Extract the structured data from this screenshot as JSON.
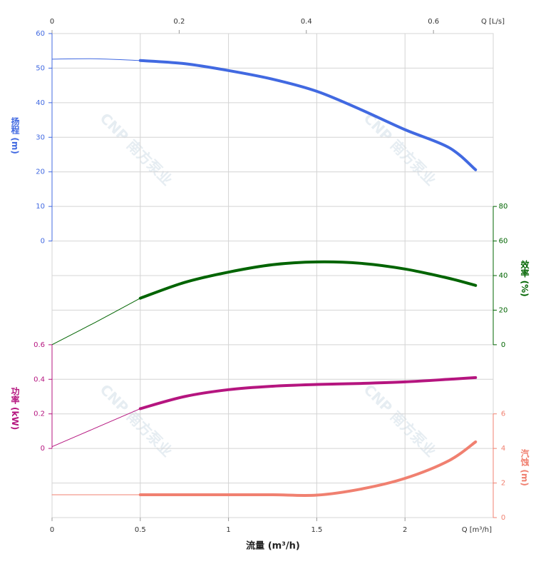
{
  "chart_data": {
    "type": "line",
    "xlabel": "流量 (m³/h)",
    "x_unit_label": "Q [m³/h]",
    "x2_unit_label": "Q [L/s]",
    "watermark": "CNP 南方泵业",
    "xlim": [
      0,
      2.5
    ],
    "xticks": [
      0,
      0.5,
      1,
      1.5,
      2
    ],
    "x2lim": [
      0,
      0.694
    ],
    "x2ticks": [
      0,
      0.2,
      0.4,
      0.6
    ],
    "grid": true,
    "operating_range": [
      0.5,
      2.4
    ],
    "x": [
      0,
      0.25,
      0.5,
      0.75,
      1,
      1.25,
      1.5,
      1.75,
      2,
      2.25,
      2.4
    ],
    "series": [
      {
        "name": "扬程 (m)",
        "color": "#4169e1",
        "side": "left",
        "ylim": [
          -80,
          60
        ],
        "yticks": [
          0,
          10,
          20,
          30,
          40,
          50,
          60
        ],
        "values": [
          52.6,
          52.7,
          52.2,
          51.3,
          49.3,
          46.8,
          43.3,
          38,
          32.2,
          27,
          20.6
        ]
      },
      {
        "name": "效率 (%)",
        "color": "#006400",
        "side": "right",
        "ylim": [
          -100,
          180
        ],
        "yticks": [
          0,
          20,
          40,
          60,
          80
        ],
        "values": [
          0,
          13.2,
          26.9,
          36,
          42,
          46.3,
          47.9,
          47.1,
          43.8,
          38.4,
          34.3
        ]
      },
      {
        "name": "功率 (kW)",
        "color": "#b5157f",
        "side": "left",
        "ylim": [
          -0.4,
          2.4
        ],
        "yticks": [
          0,
          0.2,
          0.4,
          0.6
        ],
        "values": [
          0.01,
          0.12,
          0.23,
          0.3,
          0.34,
          0.36,
          0.37,
          0.376,
          0.385,
          0.4,
          0.41
        ]
      },
      {
        "name": "汽蚀 (m)",
        "color": "#f08070",
        "side": "right",
        "ylim": [
          0,
          28
        ],
        "yticks": [
          0,
          2,
          4,
          6
        ],
        "values": [
          1.32,
          1.32,
          1.32,
          1.32,
          1.32,
          1.32,
          1.3,
          1.65,
          2.27,
          3.3,
          4.38
        ]
      }
    ]
  }
}
